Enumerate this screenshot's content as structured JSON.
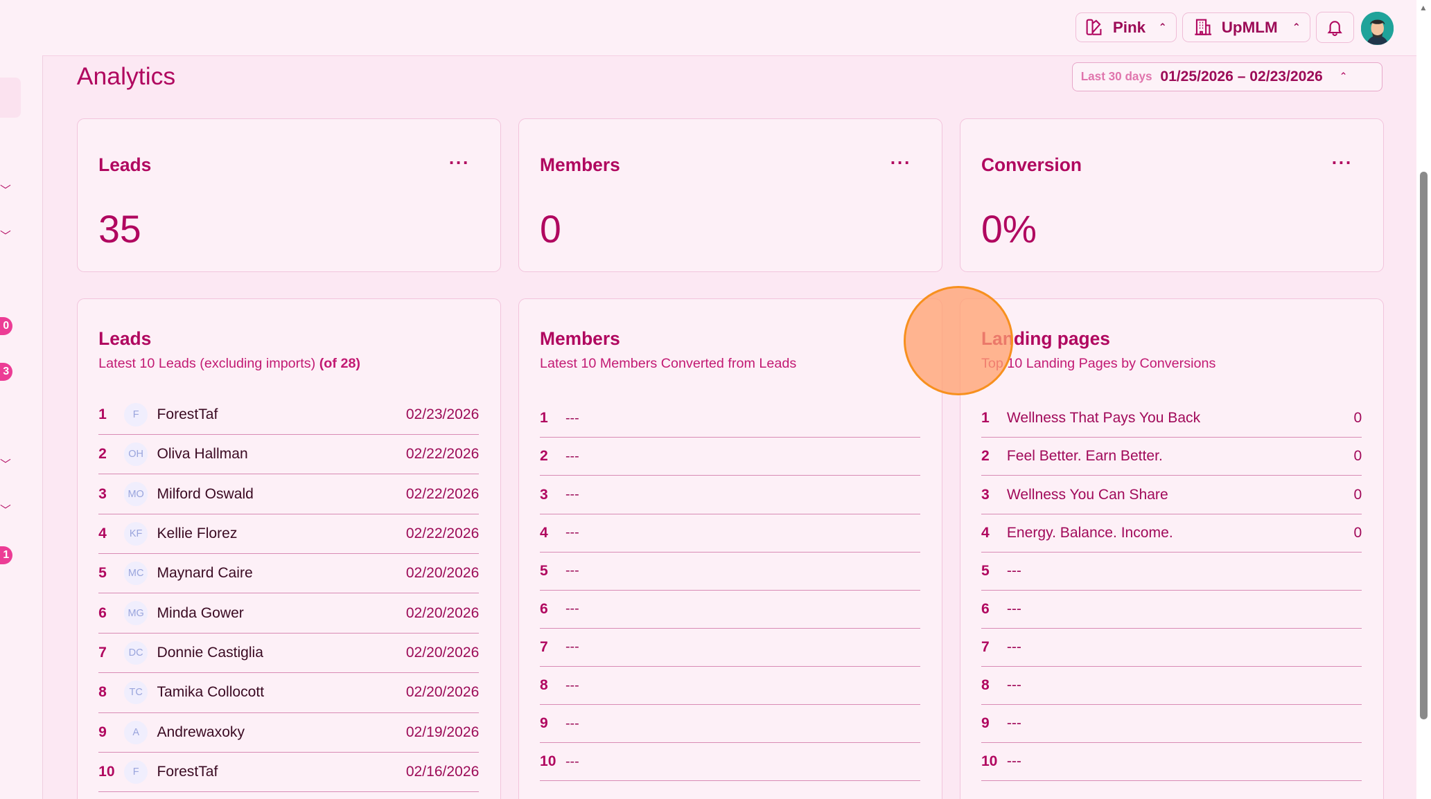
{
  "topbar": {
    "theme_label": "Pink",
    "org_label": "UpMLM"
  },
  "sidebar": {
    "badges": [
      "0",
      "3",
      "1"
    ]
  },
  "page": {
    "title": "Analytics"
  },
  "date_range": {
    "preset": "Last 30 days",
    "range": "01/25/2026 – 02/23/2026"
  },
  "stats": [
    {
      "title": "Leads",
      "value": "35",
      "menu": "···"
    },
    {
      "title": "Members",
      "value": "0",
      "menu": "···"
    },
    {
      "title": "Conversion",
      "value": "0%",
      "menu": "···"
    }
  ],
  "leads": {
    "title": "Leads",
    "subtitle": "Latest 10 Leads (excluding imports)",
    "count": "(of 28)",
    "items": [
      {
        "n": "1",
        "initials": "F",
        "name": "ForestTaf",
        "date": "02/23/2026"
      },
      {
        "n": "2",
        "initials": "OH",
        "name": "Oliva Hallman",
        "date": "02/22/2026"
      },
      {
        "n": "3",
        "initials": "MO",
        "name": "Milford Oswald",
        "date": "02/22/2026"
      },
      {
        "n": "4",
        "initials": "KF",
        "name": "Kellie Florez",
        "date": "02/22/2026"
      },
      {
        "n": "5",
        "initials": "MC",
        "name": "Maynard Caire",
        "date": "02/20/2026"
      },
      {
        "n": "6",
        "initials": "MG",
        "name": "Minda Gower",
        "date": "02/20/2026"
      },
      {
        "n": "7",
        "initials": "DC",
        "name": "Donnie Castiglia",
        "date": "02/20/2026"
      },
      {
        "n": "8",
        "initials": "TC",
        "name": "Tamika Collocott",
        "date": "02/20/2026"
      },
      {
        "n": "9",
        "initials": "A",
        "name": "Andrewaxoky",
        "date": "02/19/2026"
      },
      {
        "n": "10",
        "initials": "F",
        "name": "ForestTaf",
        "date": "02/16/2026"
      }
    ]
  },
  "members": {
    "title": "Members",
    "subtitle": "Latest 10 Members Converted from Leads",
    "items": [
      {
        "n": "1",
        "v": "---"
      },
      {
        "n": "2",
        "v": "---"
      },
      {
        "n": "3",
        "v": "---"
      },
      {
        "n": "4",
        "v": "---"
      },
      {
        "n": "5",
        "v": "---"
      },
      {
        "n": "6",
        "v": "---"
      },
      {
        "n": "7",
        "v": "---"
      },
      {
        "n": "8",
        "v": "---"
      },
      {
        "n": "9",
        "v": "---"
      },
      {
        "n": "10",
        "v": "---"
      }
    ]
  },
  "landing": {
    "title": "Landing pages",
    "subtitle": "Top 10 Landing Pages by Conversions",
    "items": [
      {
        "n": "1",
        "name": "Wellness That Pays You Back",
        "count": "0"
      },
      {
        "n": "2",
        "name": "Feel Better. Earn Better.",
        "count": "0"
      },
      {
        "n": "3",
        "name": "Wellness You Can Share",
        "count": "0"
      },
      {
        "n": "4",
        "name": "Energy. Balance. Income.",
        "count": "0"
      },
      {
        "n": "5",
        "name": "---",
        "count": ""
      },
      {
        "n": "6",
        "name": "---",
        "count": ""
      },
      {
        "n": "7",
        "name": "---",
        "count": ""
      },
      {
        "n": "8",
        "name": "---",
        "count": ""
      },
      {
        "n": "9",
        "name": "---",
        "count": ""
      },
      {
        "n": "10",
        "name": "---",
        "count": ""
      }
    ]
  },
  "colors": {
    "accent": "#b0075f",
    "background": "#fce8f3",
    "badge": "#ec3c95",
    "cursor_highlight": "#f7901e"
  }
}
